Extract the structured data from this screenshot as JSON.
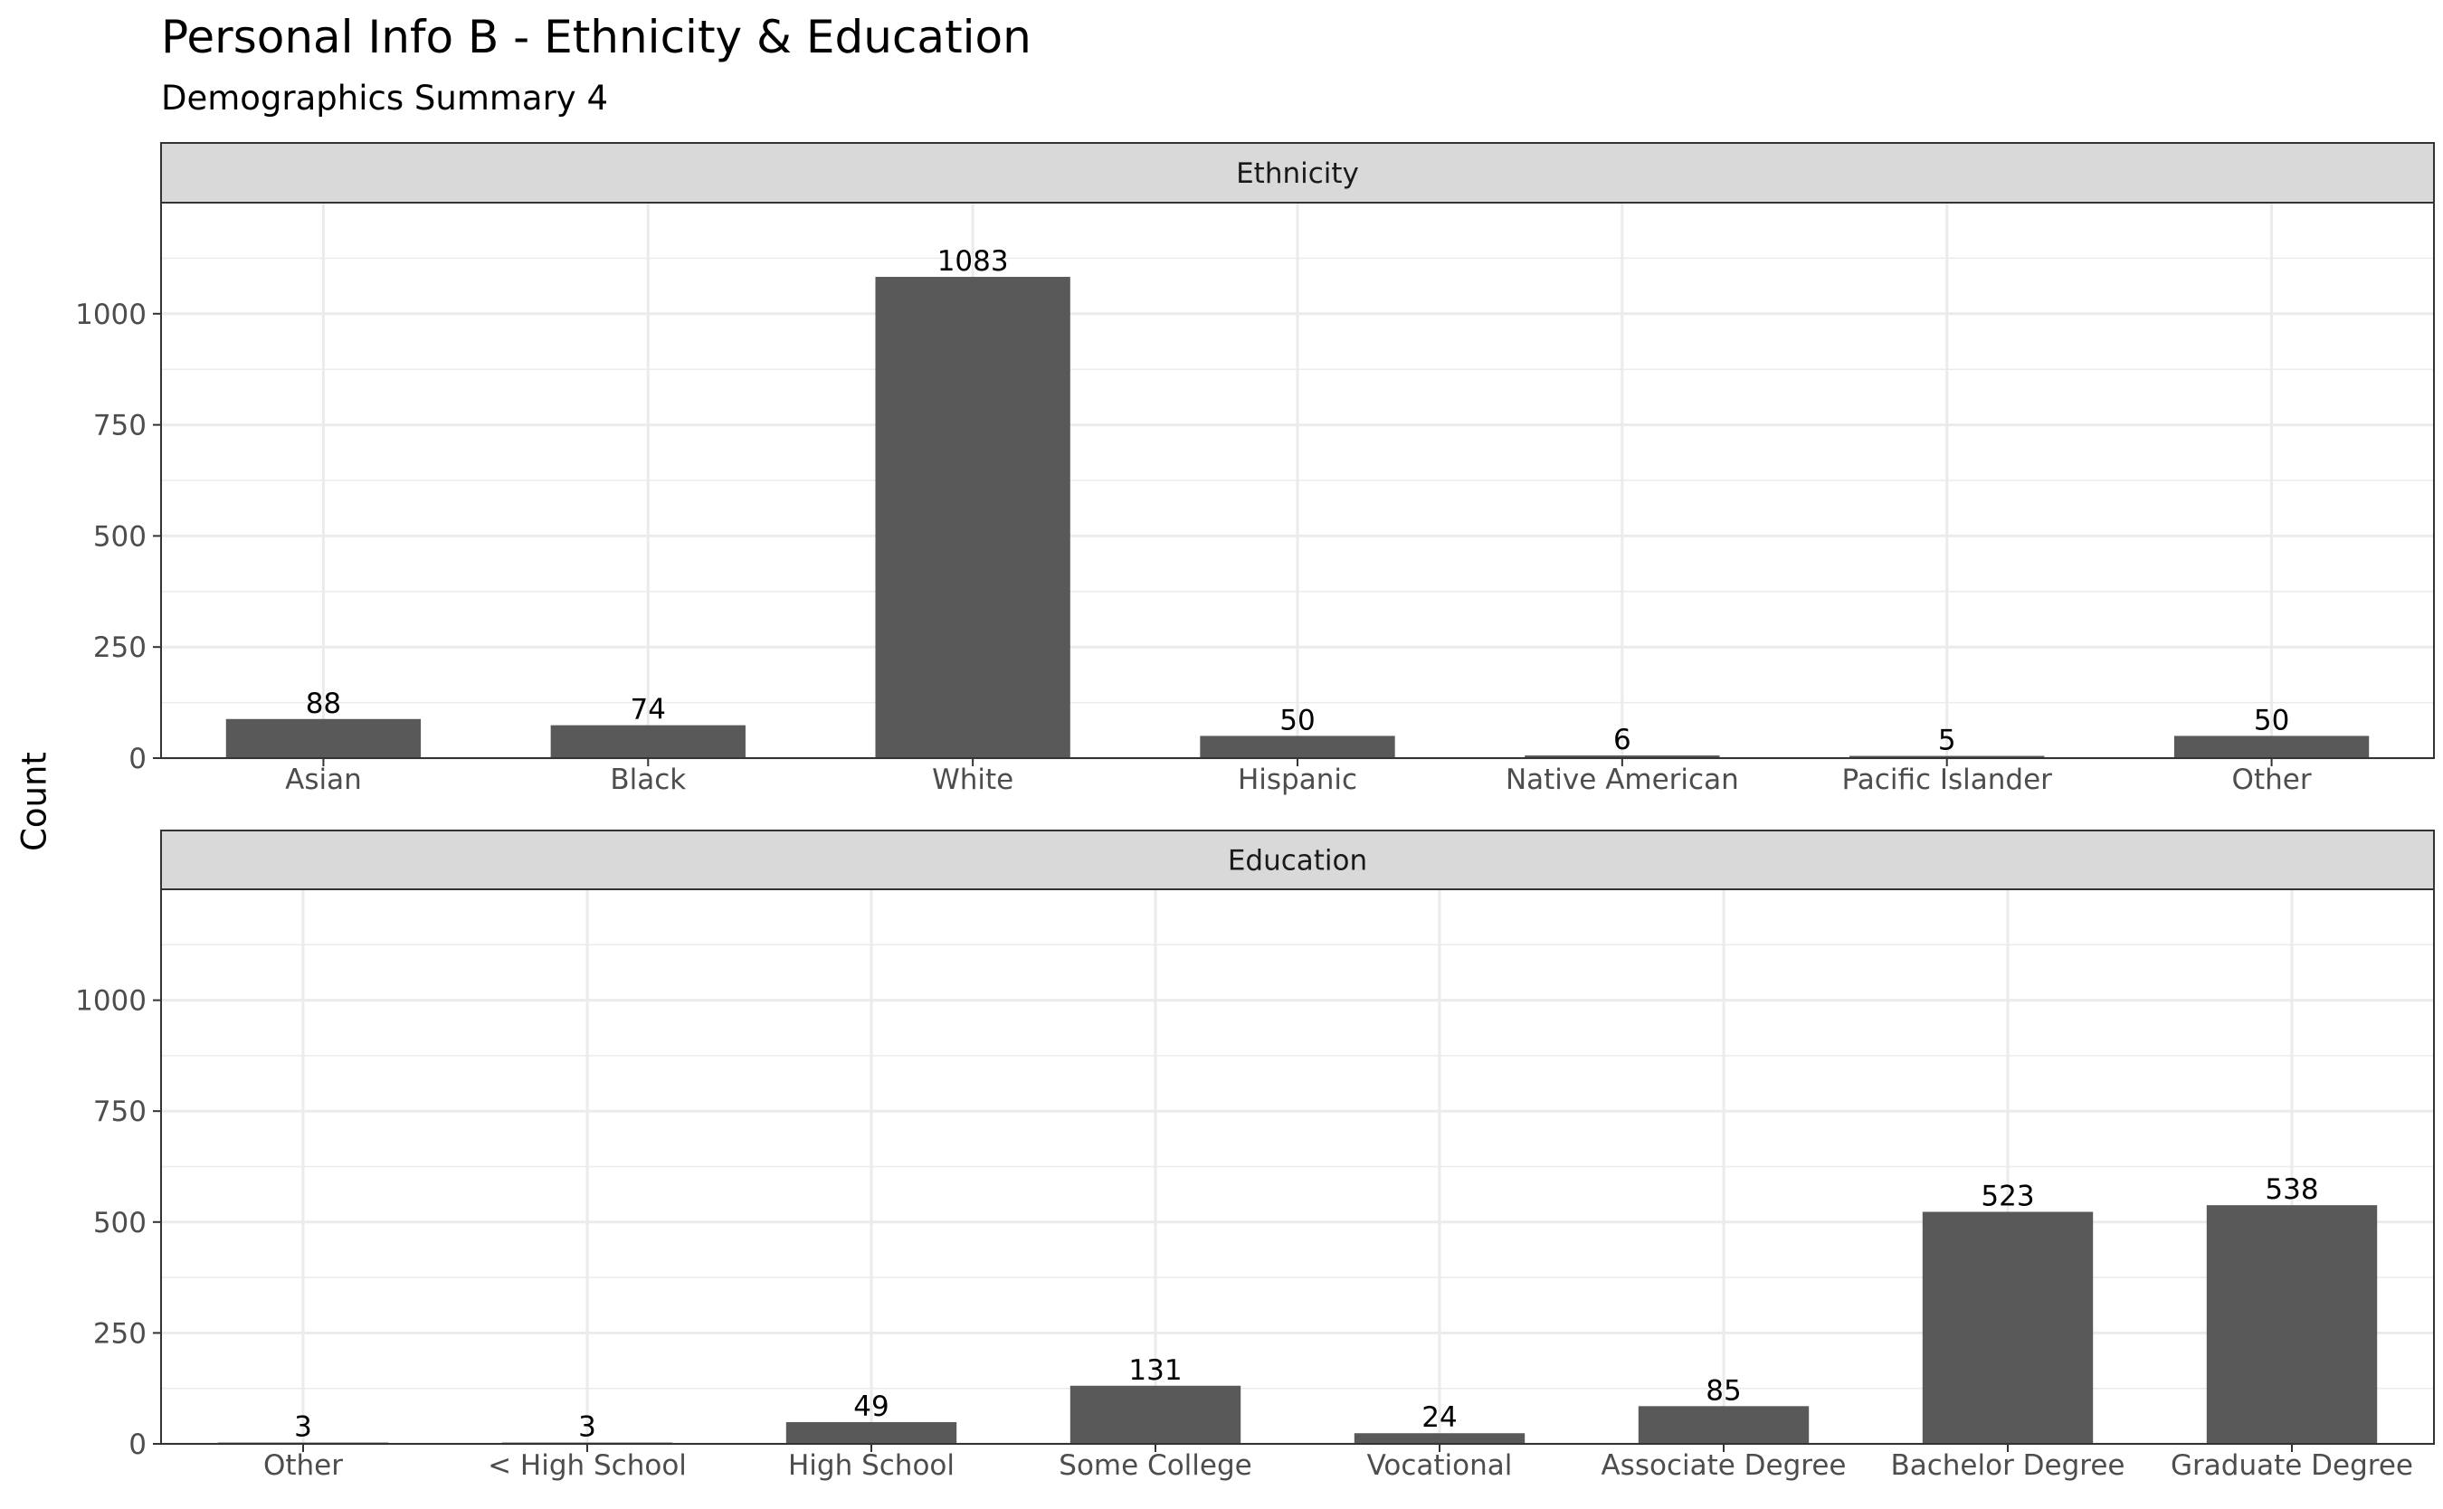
{
  "chart_data": {
    "type": "bar",
    "title": "Personal Info B - Ethnicity & Education",
    "subtitle": "Demographics Summary 4",
    "ylabel": "Count",
    "xlabel": "",
    "ylim": [
      0,
      1250
    ],
    "y_ticks": [
      0,
      250,
      500,
      750,
      1000
    ],
    "grid": true,
    "bar_color": "#595959",
    "panels": [
      {
        "name": "Ethnicity",
        "categories": [
          "Asian",
          "Black",
          "White",
          "Hispanic",
          "Native American",
          "Pacific Islander",
          "Other"
        ],
        "values": [
          88,
          74,
          1083,
          50,
          6,
          5,
          50
        ]
      },
      {
        "name": "Education",
        "categories": [
          "Other",
          "< High School",
          "High School",
          "Some College",
          "Vocational",
          "Associate Degree",
          "Bachelor Degree",
          "Graduate Degree"
        ],
        "values": [
          3,
          3,
          49,
          131,
          24,
          85,
          523,
          538
        ]
      }
    ]
  }
}
